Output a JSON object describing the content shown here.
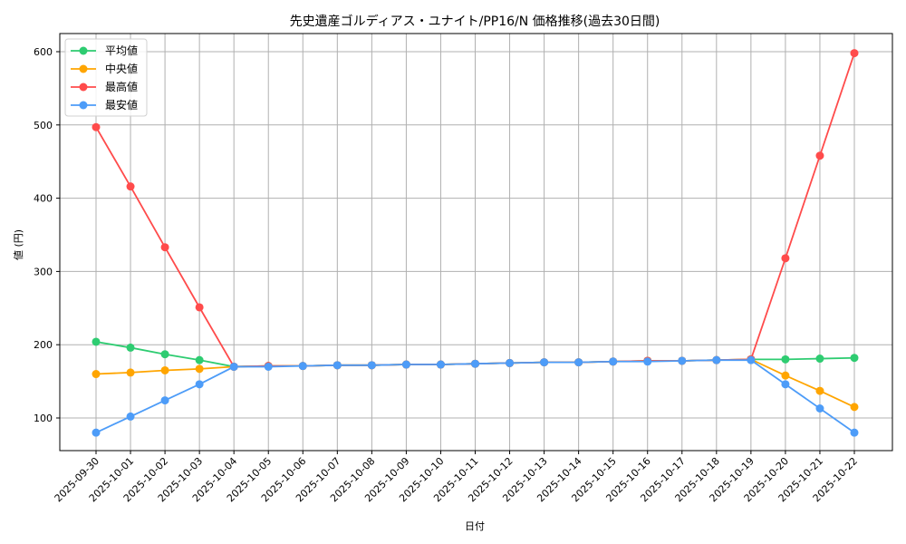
{
  "chart_data": {
    "type": "line",
    "title": "先史遺産ゴルディアス・ユナイト/PP16/N 価格推移(過去30日間)",
    "xlabel": "日付",
    "ylabel": "値 (円)",
    "ylim": [
      55,
      625
    ],
    "yticks": [
      100,
      200,
      300,
      400,
      500,
      600
    ],
    "grid": true,
    "legend_position": "upper left",
    "x": [
      "2025-09-30",
      "2025-10-01",
      "2025-10-02",
      "2025-10-03",
      "2025-10-04",
      "2025-10-05",
      "2025-10-06",
      "2025-10-07",
      "2025-10-08",
      "2025-10-09",
      "2025-10-10",
      "2025-10-11",
      "2025-10-12",
      "2025-10-13",
      "2025-10-14",
      "2025-10-15",
      "2025-10-16",
      "2025-10-17",
      "2025-10-18",
      "2025-10-19",
      "2025-10-20",
      "2025-10-21",
      "2025-10-22"
    ],
    "series": [
      {
        "name": "平均値",
        "color": "#2ecc71",
        "values": [
          204,
          196,
          187,
          179,
          170,
          171,
          171,
          172,
          172,
          173,
          173,
          174,
          175,
          176,
          176,
          177,
          178,
          178,
          179,
          180,
          180,
          181,
          182
        ]
      },
      {
        "name": "中央値",
        "color": "#ffa500",
        "values": [
          160,
          162,
          165,
          167,
          170,
          171,
          171,
          172,
          172,
          173,
          173,
          174,
          175,
          176,
          176,
          177,
          178,
          178,
          179,
          180,
          158,
          137,
          115
        ]
      },
      {
        "name": "最高値",
        "color": "#ff4b4b",
        "values": [
          497,
          416,
          333,
          251,
          170,
          171,
          171,
          172,
          172,
          173,
          173,
          174,
          175,
          176,
          176,
          177,
          178,
          178,
          179,
          180,
          318,
          458,
          598
        ]
      },
      {
        "name": "最安値",
        "color": "#4d9cf8",
        "values": [
          80,
          102,
          124,
          146,
          170,
          170,
          171,
          172,
          172,
          173,
          173,
          174,
          175,
          176,
          176,
          177,
          177,
          178,
          179,
          179,
          146,
          113,
          80
        ]
      }
    ]
  }
}
